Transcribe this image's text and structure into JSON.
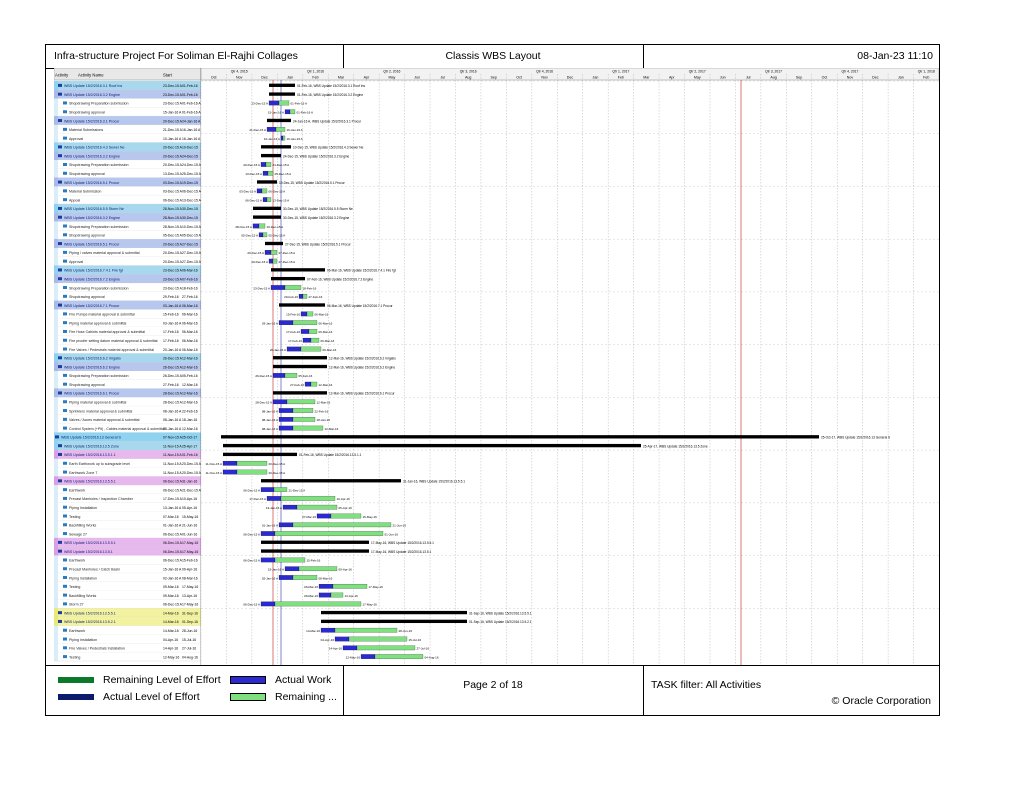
{
  "header": {
    "title": "Infra-structure Project For Soliman El-Rajhi Collages",
    "layout": "Classis WBS Layout",
    "datetime": "08-Jan-23 11:10"
  },
  "footer": {
    "legend": [
      {
        "label": "Remaining Level of Effort",
        "color": "#0a7a2a",
        "kind": "line"
      },
      {
        "label": "Actual Level of Effort",
        "color": "#0b1c6e",
        "kind": "line"
      },
      {
        "label": "Actual Work",
        "color": "#2a2ad0",
        "kind": "box"
      },
      {
        "label": "Remaining ...",
        "color": "#7fe07f",
        "kind": "box"
      }
    ],
    "page": "Page 2 of 18",
    "filter": "TASK filter: All Activities",
    "copyright": "© Oracle Corporation"
  },
  "gantt": {
    "columns": [
      "Activity",
      "Activity Name",
      "Start"
    ],
    "timeline_groups": [
      "Qtr 4, 2015",
      "Qtr 1, 2016",
      "Qtr 2, 2016",
      "Qtr 3, 2016",
      "Qtr 4, 2016",
      "Qtr 1, 2017",
      "Qtr 2, 2017",
      "Qtr 3, 2017",
      "Qtr 4, 2017",
      "Qtr 1, 2018"
    ],
    "months": [
      "Oct",
      "Nov",
      "Dec",
      "Jan",
      "Feb",
      "Mar",
      "Apr",
      "May",
      "Jun",
      "Jul",
      "Aug",
      "Sep",
      "Oct",
      "Nov",
      "Dec",
      "Jan",
      "Feb",
      "Mar",
      "Apr",
      "May",
      "Jun",
      "Jul",
      "Aug",
      "Sep",
      "Oct",
      "Nov",
      "Dec",
      "Jan",
      "Feb"
    ],
    "rows": [
      {
        "k": "w1",
        "name": "WBS Update 15/2/2016.3.1 Roof Ins",
        "start": "23-Dec-15 A",
        "finish": "01-Feb-16",
        "bar": [
          68,
          94
        ]
      },
      {
        "k": "w2",
        "name": "WBS Update 15/2/2016.3.2 Engine",
        "start": "23-Dec-15 A",
        "finish": "01-Feb-16",
        "bar": [
          68,
          94
        ]
      },
      {
        "k": "a",
        "name": "Shopdrawing Preparation submission",
        "start": "23-Dec-15 A",
        "finish": "01-Feb-16 A",
        "bar": [
          68,
          88
        ]
      },
      {
        "k": "a",
        "name": "Shopdrawing approval",
        "start": "15-Jan-16 A",
        "finish": "01-Feb-16 A",
        "bar": [
          84,
          94
        ]
      },
      {
        "k": "w2",
        "name": "WBS Update 15/2/2016.3.1 Procur",
        "start": "20-Dec-15 A",
        "finish": "24-Jan-16 A",
        "bar": [
          66,
          90
        ]
      },
      {
        "k": "a",
        "name": "Material Submissions",
        "start": "21-Dec-15 A",
        "finish": "16-Jan-16 A",
        "bar": [
          66,
          84
        ]
      },
      {
        "k": "a",
        "name": "Approval",
        "start": "10-Jan-16 A",
        "finish": "16-Jan-16 A",
        "bar": [
          80,
          84
        ]
      },
      {
        "k": "w1",
        "name": "WBS Update 15/2/2016.4.3 Sewer Ne",
        "start": "20-Dec-15 A",
        "finish": "10-Dec-15",
        "bar": [
          60,
          90
        ]
      },
      {
        "k": "w2",
        "name": "WBS Update 15/2/2016.3.2 Engine",
        "start": "20-Dec-15 A",
        "finish": "24-Dec-15",
        "bar": [
          60,
          80
        ]
      },
      {
        "k": "a",
        "name": "Shopdrawing Preparation submission",
        "start": "20-Dec-15 A",
        "finish": "24-Dec-15 A",
        "bar": [
          60,
          70
        ]
      },
      {
        "k": "a",
        "name": "Shopdrawing approval",
        "start": "13-Dec-15 A",
        "finish": "25-Dec-15 A",
        "bar": [
          62,
          72
        ]
      },
      {
        "k": "w2",
        "name": "WBS Update 15/2/2016.5.1 Procur",
        "start": "03-Dec-15 A",
        "finish": "19-Dec-15",
        "bar": [
          56,
          76
        ]
      },
      {
        "k": "a",
        "name": "Material Submission",
        "start": "03-Dec-15 A",
        "finish": "06-Dec-15 A",
        "bar": [
          56,
          66
        ]
      },
      {
        "k": "a",
        "name": "Appoal",
        "start": "06-Dec-15 A",
        "finish": "13-Dec-15 A",
        "bar": [
          62,
          70
        ]
      },
      {
        "k": "w1",
        "name": "WBS Update 15/2/2016.5.5 Storm Ne",
        "start": "28-Nov-15 A",
        "finish": "30-Dec-15",
        "bar": [
          52,
          80
        ]
      },
      {
        "k": "w2",
        "name": "WBS Update 15/2/2016.3.2 Engine",
        "start": "28-Nov-15 A",
        "finish": "30-Dec-15",
        "bar": [
          52,
          80
        ]
      },
      {
        "k": "a",
        "name": "Shopdrawing Preparation submission",
        "start": "28-Nov-15 A",
        "finish": "10-Dec-15 A",
        "bar": [
          52,
          64
        ]
      },
      {
        "k": "a",
        "name": "Shopdrawing approval",
        "start": "05-Dec-15 A",
        "finish": "05-Dec-15 A",
        "bar": [
          58,
          66
        ]
      },
      {
        "k": "w2",
        "name": "WBS Update 15/2/2016.5.1 Procur",
        "start": "20-Dec-15 A",
        "finish": "27-Dec-15",
        "bar": [
          64,
          82
        ]
      },
      {
        "k": "a",
        "name": "Piping / valves material approval & submittal",
        "start": "20-Dec-15 A",
        "finish": "27-Dec-15 A",
        "bar": [
          64,
          76
        ]
      },
      {
        "k": "a",
        "name": "Approval",
        "start": "20-Dec-15 A",
        "finish": "27-Dec-15 A",
        "bar": [
          68,
          76
        ]
      },
      {
        "k": "w1",
        "name": "WBS Update 15/2/2016.7.4.1 Fire fgt",
        "start": "23-Dec-15 A",
        "finish": "06-Mar-16",
        "bar": [
          70,
          124
        ]
      },
      {
        "k": "w2",
        "name": "WBS Update 15/2/2016.7.2 Engine",
        "start": "23-Dec-15 A",
        "finish": "07-Feb-16",
        "bar": [
          70,
          104
        ]
      },
      {
        "k": "a",
        "name": "Shopdrawing Preparation submission",
        "start": "23-Dec-15 A",
        "finish": "18-Feb-16",
        "bar": [
          70,
          100
        ]
      },
      {
        "k": "a",
        "name": "Shopdrawing approval",
        "start": "29-Feb-16",
        "finish": "27-Feb-16",
        "bar": [
          98,
          106
        ]
      },
      {
        "k": "w2",
        "name": "WBS Update 15/2/2016.7.1 Procur",
        "start": "03-Jan-16 A",
        "finish": "06-Mar-16",
        "bar": [
          78,
          124
        ]
      },
      {
        "k": "a",
        "name": "Fire Pumps material approval & submittal",
        "start": "15-Feb-16",
        "finish": "06-Mar-16",
        "bar": [
          100,
          112
        ]
      },
      {
        "k": "a",
        "name": "Piping material approval & submittal",
        "start": "03-Jan-16 A",
        "finish": "06-Mar-16",
        "bar": [
          78,
          116
        ]
      },
      {
        "k": "a",
        "name": "Fire Hose Cabints material approval & submittal",
        "start": "17-Feb-16",
        "finish": "06-Mar-16",
        "bar": [
          100,
          116
        ]
      },
      {
        "k": "a",
        "name": "Fire proofer setting datum material approval & submittal",
        "start": "17-Feb-16",
        "finish": "06-Mar-16",
        "bar": [
          102,
          118
        ]
      },
      {
        "k": "a",
        "name": "Fire Valves / Pedestrals material approval & submittal",
        "start": "20-Jan-16 A",
        "finish": "06-Mar-16",
        "bar": [
          86,
          120
        ]
      },
      {
        "k": "w1",
        "name": "WBS Update 15/2/2016.6.2 Irrigatio",
        "start": "26-Dec-15 A",
        "finish": "12-Mar-16",
        "bar": [
          72,
          126
        ]
      },
      {
        "k": "w2",
        "name": "WBS Update 15/2/2016.6.2 Engine",
        "start": "26-Dec-15 A",
        "finish": "12-Mar-16",
        "bar": [
          72,
          126
        ]
      },
      {
        "k": "a",
        "name": "Shopdrawing Preparation submission",
        "start": "26-Dec-15 A",
        "finish": "05-Feb-16",
        "bar": [
          72,
          96
        ]
      },
      {
        "k": "a",
        "name": "Shopdrawing approval",
        "start": "27-Feb-16",
        "finish": "12-Mar-16",
        "bar": [
          104,
          116
        ]
      },
      {
        "k": "w2",
        "name": "WBS Update 15/2/2016.6.1 Procur",
        "start": "28-Dec-15 A",
        "finish": "12-Mar-16",
        "bar": [
          72,
          126
        ]
      },
      {
        "k": "a",
        "name": "Piping material approval & submittal",
        "start": "28-Dec-15 A",
        "finish": "12-Mar-16",
        "bar": [
          72,
          114
        ]
      },
      {
        "k": "a",
        "name": "Sprinklers material approval & submittal",
        "start": "08-Jan-16 A",
        "finish": "22-Feb-16",
        "bar": [
          78,
          112
        ]
      },
      {
        "k": "a",
        "name": "Valves / Acces material approval & submittal",
        "start": "08-Jan-16 A",
        "finish": "18-Jan-16",
        "bar": [
          78,
          114
        ]
      },
      {
        "k": "a",
        "name": "Control System (+Pit) , Cables material approval & submittal",
        "start": "08-Jan-16 A",
        "finish": "12-Mar-16",
        "bar": [
          78,
          122
        ]
      },
      {
        "k": "w0",
        "name": "WBS Update 15/2/2016.13 General S",
        "start": "07-Nov-15 A",
        "finish": "25-Oct-17",
        "bar": [
          20,
          618
        ]
      },
      {
        "k": "w1",
        "name": "WBS Update 15/2/2016.13.5 Zone",
        "start": "11-Nov-15 A",
        "finish": "25-Apr-17",
        "bar": [
          22,
          440
        ]
      },
      {
        "k": "w3",
        "name": "WBS Update 15/2/2016.13.5.1.1",
        "start": "11-Nov-15 A",
        "finish": "01-Feb-16",
        "bar": [
          22,
          96
        ]
      },
      {
        "k": "a",
        "name": "Earth Earthwork up to subsgrade level",
        "start": "11-Nov-15 A",
        "finish": "20-Dec-15 A",
        "bar": [
          22,
          66
        ]
      },
      {
        "k": "a",
        "name": "Earthwork Zone 7",
        "start": "11-Nov-15 A",
        "finish": "20-Dec-15 A",
        "bar": [
          22,
          66
        ]
      },
      {
        "k": "w3",
        "name": "WBS Update 15/2/2016.13.5.5.1",
        "start": "06-Dec-15 A",
        "finish": "31-Jan-16",
        "bar": [
          60,
          200
        ]
      },
      {
        "k": "a",
        "name": "Earthwork",
        "start": "06-Dec-15 A",
        "finish": "21-Dec-15 A",
        "bar": [
          60,
          86
        ]
      },
      {
        "k": "a",
        "name": "Precast Manholes / Inspection Chamber",
        "start": "17-Dec-15 A",
        "finish": "10-Apr-16",
        "bar": [
          66,
          134
        ]
      },
      {
        "k": "a",
        "name": "Piping Installation",
        "start": "13-Jan-16 A",
        "finish": "05-Apr-16",
        "bar": [
          82,
          136
        ]
      },
      {
        "k": "a",
        "name": "Testing",
        "start": "07-Mar-16",
        "finish": "15-May-16",
        "bar": [
          116,
          160
        ]
      },
      {
        "k": "a",
        "name": "Backfilling Works",
        "start": "01-Jan-16 A",
        "finish": "21-Jun-16",
        "bar": [
          78,
          190
        ]
      },
      {
        "k": "a",
        "name": "Sewage 27",
        "start": "06-Dec-15 A",
        "finish": "01-Jun-16",
        "bar": [
          60,
          182
        ]
      },
      {
        "k": "w3",
        "name": "WBS Update 15/2/2016.13.5.5.1",
        "start": "06-Dec-15 A",
        "finish": "17-May-16",
        "bar": [
          60,
          168
        ]
      },
      {
        "k": "w3",
        "name": "WBS Update 15/2/2016.13.5.1",
        "start": "06-Dec-15 A",
        "finish": "17-May-16",
        "bar": [
          60,
          168
        ]
      },
      {
        "k": "a",
        "name": "Earthwork",
        "start": "06-Dec-15 A",
        "finish": "15-Feb-16",
        "bar": [
          60,
          104
        ]
      },
      {
        "k": "a",
        "name": "Precast Manholes / Catch Basin",
        "start": "15-Jan-16 A",
        "finish": "09-Apr-16",
        "bar": [
          84,
          136
        ]
      },
      {
        "k": "a",
        "name": "Piping installation",
        "start": "02-Jan-16 A",
        "finish": "08-Mar-16",
        "bar": [
          78,
          116
        ]
      },
      {
        "k": "a",
        "name": "Testing",
        "start": "09-Mar-16",
        "finish": "17-May-16",
        "bar": [
          118,
          166
        ]
      },
      {
        "k": "a",
        "name": "Backfilling Works",
        "start": "09-Mar-16",
        "finish": "13-Apr-16",
        "bar": [
          118,
          142
        ]
      },
      {
        "k": "a",
        "name": "Storm 27",
        "start": "06-Dec-15 A",
        "finish": "17-May-16",
        "bar": [
          60,
          160
        ]
      },
      {
        "k": "w4",
        "name": "WBS Update 15/2/2016.13.5.5.1",
        "start": "14-Mar-16",
        "finish": "31-Sep-16",
        "bar": [
          120,
          266
        ]
      },
      {
        "k": "w4",
        "name": "WBS Update 15/2/2016.13.5.2.1",
        "start": "14-Mar-16",
        "finish": "01-Sep-16",
        "bar": [
          120,
          266
        ]
      },
      {
        "k": "a",
        "name": "Earthwork",
        "start": "14-Mar-16",
        "finish": "28-Jun-16",
        "bar": [
          120,
          196
        ]
      },
      {
        "k": "a",
        "name": "Piping Installation",
        "start": "04-Apr-16",
        "finish": "15-Jul-16",
        "bar": [
          134,
          206
        ]
      },
      {
        "k": "a",
        "name": "Fire Valves / Pedestrals Installation",
        "start": "14-Apr-16",
        "finish": "27-Jul-16",
        "bar": [
          142,
          214
        ]
      },
      {
        "k": "a",
        "name": "Testing",
        "start": "12-May-16",
        "finish": "04-Aug-16",
        "bar": [
          160,
          222
        ]
      }
    ]
  }
}
